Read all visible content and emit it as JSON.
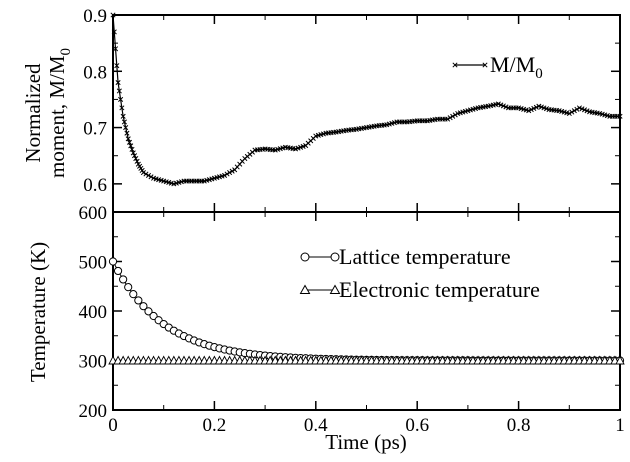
{
  "chart_data": [
    {
      "type": "line",
      "ylabel": "Normalized moment, M/M0",
      "ylabel_lines": [
        "Normalized",
        "moment, M/M",
        "0"
      ],
      "ylim": [
        0.55,
        0.9
      ],
      "yticks": [
        "0.6",
        "0.7",
        "0.8",
        "0.9"
      ],
      "ytick_values": [
        0.6,
        0.7,
        0.8,
        0.9
      ],
      "xlim": [
        0,
        1
      ],
      "legend_position": "top-right",
      "series": [
        {
          "name": "M/M0",
          "name_main": "M/M",
          "name_sub": "0",
          "marker": "x",
          "x": [
            0,
            0.01,
            0.02,
            0.03,
            0.04,
            0.05,
            0.06,
            0.08,
            0.1,
            0.12,
            0.14,
            0.16,
            0.18,
            0.2,
            0.22,
            0.24,
            0.26,
            0.28,
            0.3,
            0.32,
            0.34,
            0.36,
            0.38,
            0.4,
            0.42,
            0.44,
            0.46,
            0.48,
            0.5,
            0.52,
            0.54,
            0.56,
            0.58,
            0.6,
            0.62,
            0.64,
            0.66,
            0.68,
            0.7,
            0.72,
            0.74,
            0.76,
            0.78,
            0.8,
            0.82,
            0.84,
            0.86,
            0.88,
            0.9,
            0.92,
            0.94,
            0.96,
            0.98,
            1.0
          ],
          "y": [
            0.9,
            0.78,
            0.72,
            0.68,
            0.655,
            0.635,
            0.62,
            0.61,
            0.605,
            0.6,
            0.605,
            0.605,
            0.605,
            0.61,
            0.615,
            0.625,
            0.645,
            0.66,
            0.662,
            0.66,
            0.665,
            0.662,
            0.668,
            0.685,
            0.69,
            0.692,
            0.695,
            0.697,
            0.7,
            0.703,
            0.705,
            0.71,
            0.71,
            0.712,
            0.712,
            0.715,
            0.715,
            0.725,
            0.73,
            0.735,
            0.738,
            0.742,
            0.735,
            0.735,
            0.73,
            0.738,
            0.732,
            0.73,
            0.725,
            0.735,
            0.728,
            0.725,
            0.72,
            0.72
          ]
        }
      ]
    },
    {
      "type": "line",
      "xlabel": "Time (ps)",
      "ylabel": "Temperature (K)",
      "xlim": [
        0,
        1
      ],
      "ylim": [
        200,
        600
      ],
      "xticks": [
        "0",
        "0.2",
        "0.4",
        "0.6",
        "0.8",
        "1"
      ],
      "xtick_values": [
        0,
        0.2,
        0.4,
        0.6,
        0.8,
        1
      ],
      "yticks": [
        "200",
        "300",
        "400",
        "500",
        "600"
      ],
      "ytick_values": [
        200,
        300,
        400,
        500,
        600
      ],
      "legend_position": "top-right",
      "series": [
        {
          "name": "Lattice temperature",
          "marker": "circle",
          "x_start": 0,
          "x_end": 1,
          "count": 101,
          "initial": 500,
          "final": 300,
          "tau_ps": 0.1
        },
        {
          "name": "Electronic temperature",
          "marker": "triangle",
          "x_start": 0,
          "x_end": 1,
          "count": 101,
          "value": 300
        }
      ]
    }
  ]
}
